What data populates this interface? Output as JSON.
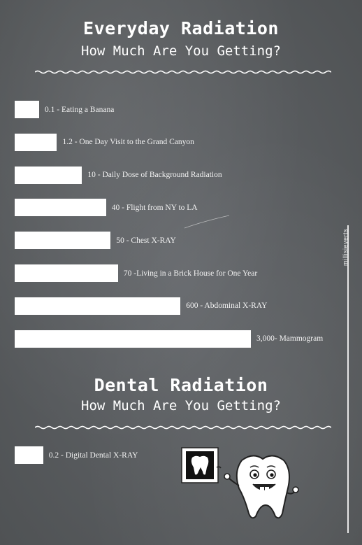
{
  "sections": [
    {
      "title": "Everyday Radiation",
      "subtitle": "How Much Are You Getting?"
    },
    {
      "title": "Dental Radiation",
      "subtitle": "How Much Are You Getting?"
    }
  ],
  "watermark": "millisieverts",
  "chart_data": [
    {
      "type": "bar",
      "orientation": "horizontal",
      "categories": [
        "Eating  a Banana",
        "One Day Visit to the Grand Canyon",
        "Daily Dose of Background Radiation",
        "Flight from NY to LA",
        "Chest X-RAY",
        "Living in a Brick House for One Year",
        "Abdominal X-RAY",
        "Mammogram"
      ],
      "values": [
        0.1,
        1.2,
        10,
        40,
        50,
        70,
        600,
        3000
      ],
      "labels": [
        "0.1 - Eating  a Banana",
        "1.2 - One Day Visit to the Grand Canyon",
        "10 - Daily Dose of Background Radiation",
        "40 - Flight from NY to LA",
        "50  - Chest X-RAY",
        "70 -Living in a Brick House for One Year",
        "600 - Abdominal X-RAY",
        "3,000- Mammogram"
      ],
      "title": "Everyday Radiation",
      "subtitle": "How Much Are You Getting?",
      "unit": "millisieverts",
      "xlabel": "",
      "ylabel": "",
      "scale": "non-linear",
      "grid": false,
      "legend": "none",
      "bar_color": "#ffffff"
    },
    {
      "type": "bar",
      "orientation": "horizontal",
      "categories": [
        "Digital Dental X-RAY"
      ],
      "values": [
        0.2
      ],
      "labels": [
        "0.2 -  Digital Dental X-RAY"
      ],
      "title": "Dental Radiation",
      "subtitle": "How Much Are You Getting?",
      "xlabel": "",
      "ylabel": "",
      "grid": false,
      "legend": "none",
      "bar_color": "#ffffff"
    }
  ],
  "colors": {
    "background": "#5b5d5f",
    "chalk": "#ffffff"
  },
  "icons": [
    "tooth-xray-icon",
    "tooth-mascot-icon"
  ]
}
